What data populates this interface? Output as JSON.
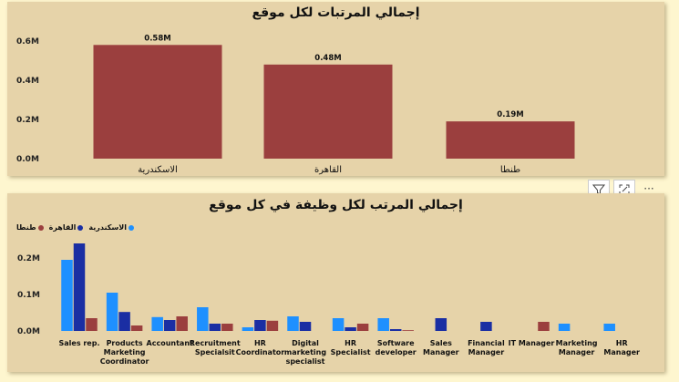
{
  "toolbar": {
    "filter_icon": "filter-icon",
    "focus_icon": "focus-mode-icon",
    "more_label": "···"
  },
  "charts": {
    "top": {
      "title": "إجمالي المرتبات لكل موقع"
    },
    "bottom": {
      "title": "إجمالي المرتب لكل وظيفة في كل موقع",
      "legend": [
        {
          "label": "الاسكندرية",
          "color": "#1e90ff"
        },
        {
          "label": "القاهرة",
          "color": "#1a2ea3"
        },
        {
          "label": "طنطا",
          "color": "#9b3f3e"
        }
      ]
    }
  },
  "chart_data": [
    {
      "type": "bar",
      "title": "إجمالي المرتبات لكل موقع",
      "categories": [
        "الاسكندرية",
        "القاهرة",
        "طنطا"
      ],
      "values": [
        0.58,
        0.48,
        0.19
      ],
      "value_labels": [
        "0.58M",
        "0.48M",
        "0.19M"
      ],
      "unit": "M",
      "ylim": [
        0,
        0.6
      ],
      "yticks": [
        "0.0M",
        "0.2M",
        "0.4M",
        "0.6M"
      ],
      "color": "#9b3f3e"
    },
    {
      "type": "bar",
      "title": "إجمالي المرتب لكل وظيفة في كل موقع",
      "categories": [
        [
          "Sales rep."
        ],
        [
          "Products",
          "Marketing",
          "Coordinator"
        ],
        [
          "Accountant"
        ],
        [
          "Recruitment",
          "Specialsit"
        ],
        [
          "HR",
          "Coordinator"
        ],
        [
          "Digital",
          "marketing",
          "specialist"
        ],
        [
          "HR",
          "Specialist"
        ],
        [
          "Software",
          "developer"
        ],
        [
          "Sales",
          "Manager"
        ],
        [
          "Financial",
          "Manager"
        ],
        [
          "IT Manager"
        ],
        [
          "Marketing",
          "Manager"
        ],
        [
          "HR",
          "Manager"
        ]
      ],
      "series": [
        {
          "name": "الاسكندرية",
          "color": "#1e90ff",
          "values": [
            0.195,
            0.105,
            0.038,
            0.065,
            0.01,
            0.04,
            0.035,
            0.035,
            0,
            0,
            0,
            0.02,
            0.02
          ]
        },
        {
          "name": "القاهرة",
          "color": "#1a2ea3",
          "values": [
            0.24,
            0.052,
            0.03,
            0.02,
            0.03,
            0.025,
            0.01,
            0.005,
            0.035,
            0.025,
            0,
            0,
            0
          ]
        },
        {
          "name": "طنطا",
          "color": "#9b3f3e",
          "values": [
            0.035,
            0.015,
            0.04,
            0.02,
            0.028,
            0,
            0.02,
            0.002,
            0,
            0,
            0.025,
            0,
            0
          ]
        }
      ],
      "ylim": [
        0,
        0.25
      ],
      "yticks": [
        "0.0M",
        "0.1M",
        "0.2M"
      ]
    }
  ]
}
